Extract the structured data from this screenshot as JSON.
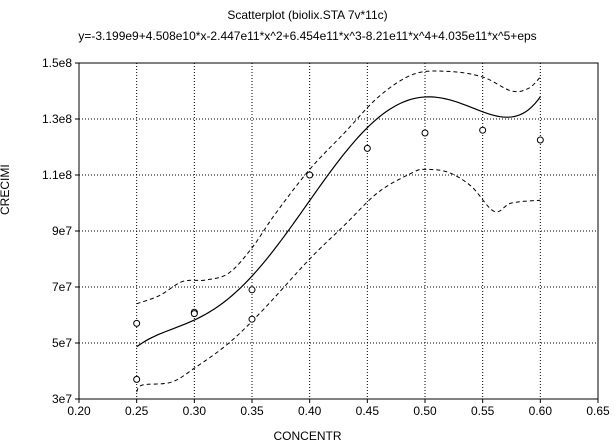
{
  "chart_data": {
    "type": "scatter",
    "title": "Scatterplot (biolix.STA 7v*11c)",
    "subtitle": "y=-3.199e9+4.508e10*x-2.447e11*x^2+6.454e11*x^3-8.21e11*x^4+4.035e11*x^5+eps",
    "xlabel": "CONCENTR",
    "ylabel": "CRECIMI",
    "xlim": [
      0.2,
      0.65
    ],
    "ylim": [
      30000000,
      150000000
    ],
    "x_ticks": [
      "0.20",
      "0.25",
      "0.30",
      "0.35",
      "0.40",
      "0.45",
      "0.50",
      "0.55",
      "0.60",
      "0.65"
    ],
    "y_ticks": [
      "3e7",
      "5e7",
      "7e7",
      "9e7",
      "1.1e8",
      "1.3e8",
      "1.5e8"
    ],
    "grid": true,
    "points": [
      {
        "x": 0.25,
        "y": 57000000
      },
      {
        "x": 0.25,
        "y": 37000000
      },
      {
        "x": 0.3,
        "y": 61000000
      },
      {
        "x": 0.3,
        "y": 60500000
      },
      {
        "x": 0.35,
        "y": 69000000
      },
      {
        "x": 0.35,
        "y": 58500000
      },
      {
        "x": 0.4,
        "y": 110000000
      },
      {
        "x": 0.45,
        "y": 119500000
      },
      {
        "x": 0.5,
        "y": 125000000
      },
      {
        "x": 0.55,
        "y": 126000000
      },
      {
        "x": 0.6,
        "y": 122500000
      }
    ],
    "fit_coefficients": [
      -3199000000.0,
      45080000000.0,
      -244700000000.0,
      645400000000.0,
      -821000000000.0,
      403500000000.0
    ],
    "fit_range": [
      0.25,
      0.6
    ],
    "confidence_upper": [
      [
        0.25,
        64000000
      ],
      [
        0.27,
        67000000
      ],
      [
        0.29,
        72000000
      ],
      [
        0.31,
        72500000
      ],
      [
        0.33,
        75000000
      ],
      [
        0.35,
        84000000
      ],
      [
        0.37,
        96000000
      ],
      [
        0.4,
        112000000
      ],
      [
        0.43,
        125000000
      ],
      [
        0.46,
        138000000
      ],
      [
        0.49,
        146000000
      ],
      [
        0.52,
        147000000
      ],
      [
        0.55,
        145000000
      ],
      [
        0.575,
        140000000
      ],
      [
        0.59,
        141000000
      ],
      [
        0.6,
        145000000
      ]
    ],
    "confidence_lower": [
      [
        0.25,
        32500000
      ],
      [
        0.255,
        35000000
      ],
      [
        0.28,
        36000000
      ],
      [
        0.3,
        41000000
      ],
      [
        0.33,
        50000000
      ],
      [
        0.36,
        62000000
      ],
      [
        0.4,
        80000000
      ],
      [
        0.43,
        92000000
      ],
      [
        0.46,
        104000000
      ],
      [
        0.49,
        111000000
      ],
      [
        0.5,
        112000000
      ],
      [
        0.52,
        111000000
      ],
      [
        0.54,
        106000000
      ],
      [
        0.56,
        97000000
      ],
      [
        0.575,
        100000000
      ],
      [
        0.6,
        101000000
      ]
    ]
  }
}
